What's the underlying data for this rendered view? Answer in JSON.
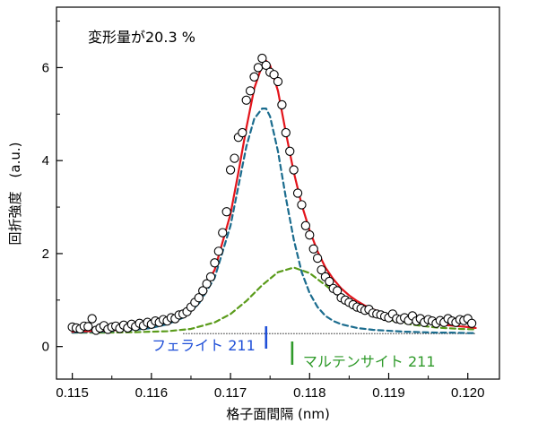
{
  "chart_data": {
    "type": "scatter",
    "title": "",
    "annotation": "変形量が20.3 %",
    "xlabel": "格子面間隔 (nm)",
    "ylabel": "回折強度　(a.u.)",
    "xlim": [
      0.1148,
      0.1204
    ],
    "ylim": [
      -0.7,
      7.3
    ],
    "x_ticks": [
      0.115,
      0.116,
      0.117,
      0.118,
      0.119,
      0.12
    ],
    "x_tick_labels": [
      "0.115",
      "0.116",
      "0.117",
      "0.118",
      "0.119",
      "0.120"
    ],
    "y_ticks": [
      0,
      2,
      4,
      6
    ],
    "y_tick_labels": [
      "0",
      "2",
      "4",
      "6"
    ],
    "grid": false,
    "baseline": 0.28,
    "series": [
      {
        "kind": "measured-points",
        "color": "#000000",
        "x": [
          0.115,
          0.11505,
          0.1151,
          0.11515,
          0.1152,
          0.11525,
          0.1153,
          0.11535,
          0.1154,
          0.11545,
          0.1155,
          0.11555,
          0.1156,
          0.11565,
          0.1157,
          0.11575,
          0.1158,
          0.11585,
          0.1159,
          0.11595,
          0.116,
          0.11605,
          0.1161,
          0.11615,
          0.1162,
          0.11625,
          0.1163,
          0.11635,
          0.1164,
          0.11645,
          0.1165,
          0.11655,
          0.1166,
          0.11665,
          0.1167,
          0.11675,
          0.1168,
          0.11685,
          0.1169,
          0.11695,
          0.117,
          0.11705,
          0.1171,
          0.11715,
          0.1172,
          0.11725,
          0.1173,
          0.11735,
          0.1174,
          0.11745,
          0.1175,
          0.11755,
          0.1176,
          0.11765,
          0.1177,
          0.11775,
          0.1178,
          0.11785,
          0.1179,
          0.11795,
          0.118,
          0.11805,
          0.1181,
          0.11815,
          0.1182,
          0.11825,
          0.1183,
          0.11835,
          0.1184,
          0.11845,
          0.1185,
          0.11855,
          0.1186,
          0.11865,
          0.1187,
          0.11875,
          0.1188,
          0.11885,
          0.1189,
          0.11895,
          0.119,
          0.11905,
          0.1191,
          0.11915,
          0.1192,
          0.11925,
          0.1193,
          0.11935,
          0.1194,
          0.11945,
          0.1195,
          0.11955,
          0.1196,
          0.11965,
          0.1197,
          0.11975,
          0.1198,
          0.11985,
          0.1199,
          0.11995,
          0.12,
          0.12005
        ],
        "y": [
          0.42,
          0.4,
          0.38,
          0.44,
          0.43,
          0.6,
          0.35,
          0.4,
          0.45,
          0.37,
          0.42,
          0.44,
          0.39,
          0.46,
          0.4,
          0.48,
          0.43,
          0.5,
          0.45,
          0.52,
          0.48,
          0.55,
          0.52,
          0.58,
          0.55,
          0.62,
          0.6,
          0.68,
          0.7,
          0.75,
          0.85,
          0.95,
          1.05,
          1.2,
          1.35,
          1.5,
          1.8,
          2.05,
          2.45,
          2.9,
          3.8,
          4.05,
          4.5,
          4.6,
          5.3,
          5.5,
          5.8,
          6.0,
          6.2,
          6.05,
          5.9,
          5.85,
          5.7,
          5.2,
          4.6,
          4.2,
          3.8,
          3.3,
          3.05,
          2.6,
          2.4,
          2.1,
          1.9,
          1.65,
          1.5,
          1.4,
          1.25,
          1.2,
          1.05,
          1.0,
          0.95,
          0.9,
          0.85,
          0.82,
          0.78,
          0.8,
          0.72,
          0.7,
          0.68,
          0.65,
          0.62,
          0.7,
          0.6,
          0.58,
          0.62,
          0.56,
          0.66,
          0.55,
          0.6,
          0.52,
          0.58,
          0.55,
          0.5,
          0.56,
          0.52,
          0.6,
          0.55,
          0.52,
          0.58,
          0.56,
          0.6,
          0.5
        ]
      },
      {
        "kind": "fit-total",
        "color": "#e3141b",
        "dashed": false,
        "x": [
          0.115,
          0.1152,
          0.1154,
          0.1156,
          0.1158,
          0.116,
          0.1162,
          0.1164,
          0.1166,
          0.1168,
          0.117,
          0.1171,
          0.1172,
          0.1173,
          0.1174,
          0.11745,
          0.1175,
          0.1176,
          0.1177,
          0.1178,
          0.1179,
          0.118,
          0.1181,
          0.1182,
          0.1183,
          0.1184,
          0.1185,
          0.1186,
          0.1187,
          0.1188,
          0.119,
          0.1192,
          0.1194,
          0.1196,
          0.1198,
          0.12,
          0.1201
        ],
        "y": [
          0.32,
          0.33,
          0.34,
          0.36,
          0.4,
          0.45,
          0.55,
          0.72,
          1.05,
          1.65,
          2.85,
          3.75,
          4.7,
          5.55,
          6.05,
          6.15,
          6.05,
          5.5,
          4.6,
          3.75,
          3.05,
          2.5,
          2.05,
          1.7,
          1.45,
          1.25,
          1.1,
          0.98,
          0.88,
          0.8,
          0.68,
          0.6,
          0.53,
          0.48,
          0.45,
          0.42,
          0.4
        ]
      },
      {
        "kind": "fit-ferrite",
        "color": "#1b6c8e",
        "dashed": true,
        "x": [
          0.115,
          0.1152,
          0.1154,
          0.1156,
          0.1158,
          0.116,
          0.1162,
          0.1164,
          0.1166,
          0.1168,
          0.117,
          0.1171,
          0.1172,
          0.1173,
          0.1174,
          0.11745,
          0.1175,
          0.1176,
          0.1177,
          0.1178,
          0.1179,
          0.118,
          0.1181,
          0.1182,
          0.1183,
          0.1184,
          0.1186,
          0.1188,
          0.119,
          0.1192,
          0.1194,
          0.1196,
          0.1198,
          0.12,
          0.1201
        ],
        "y": [
          0.3,
          0.31,
          0.32,
          0.34,
          0.36,
          0.4,
          0.48,
          0.62,
          0.92,
          1.48,
          2.6,
          3.45,
          4.3,
          4.9,
          5.12,
          5.12,
          4.95,
          4.2,
          3.2,
          2.3,
          1.6,
          1.15,
          0.85,
          0.66,
          0.55,
          0.48,
          0.4,
          0.36,
          0.34,
          0.32,
          0.31,
          0.3,
          0.3,
          0.29,
          0.29
        ]
      },
      {
        "kind": "fit-martensite",
        "color": "#5a9b1a",
        "dashed": true,
        "x": [
          0.115,
          0.1154,
          0.1158,
          0.1162,
          0.1165,
          0.1168,
          0.117,
          0.1172,
          0.1174,
          0.1176,
          0.1178,
          0.118,
          0.1182,
          0.1184,
          0.1186,
          0.1188,
          0.119,
          0.1193,
          0.1196,
          0.1199,
          0.1201
        ],
        "y": [
          0.3,
          0.3,
          0.31,
          0.33,
          0.38,
          0.52,
          0.7,
          0.98,
          1.32,
          1.6,
          1.7,
          1.58,
          1.32,
          1.05,
          0.85,
          0.7,
          0.58,
          0.47,
          0.41,
          0.38,
          0.37
        ]
      }
    ],
    "markers": [
      {
        "label": "フェライト 211",
        "x": 0.11745,
        "color": "#1f4fd8"
      },
      {
        "label": "マルテンサイト 211",
        "x": 0.11778,
        "color": "#2f9a2a"
      }
    ]
  }
}
